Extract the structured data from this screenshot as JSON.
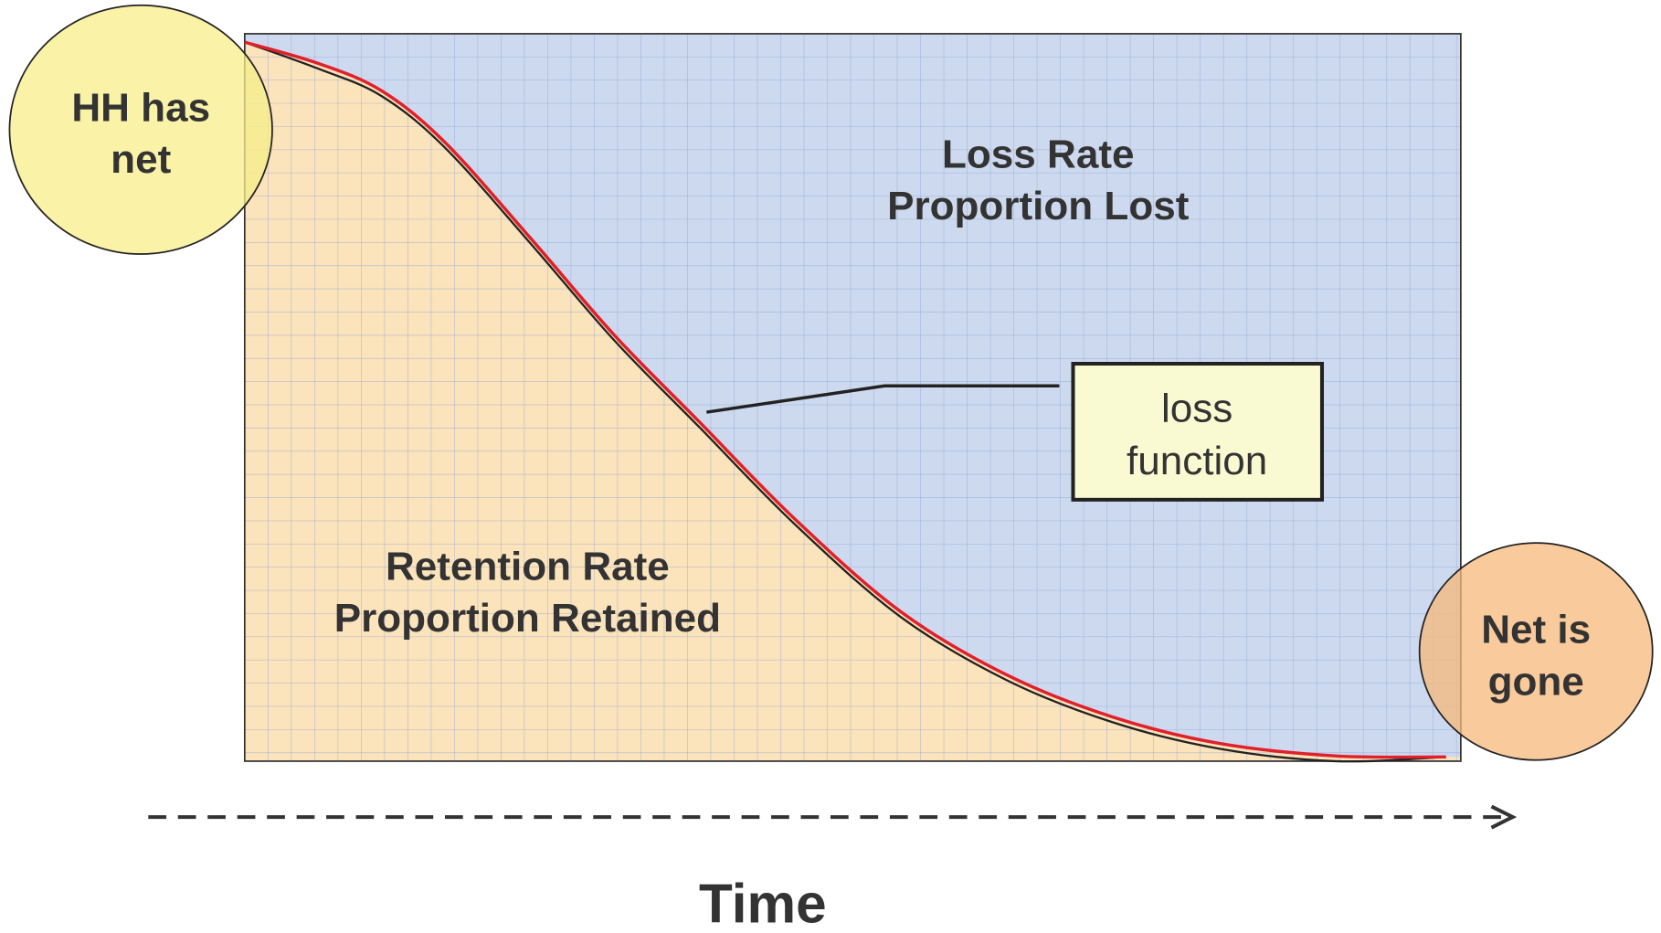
{
  "start_circle": {
    "lines": [
      "HH has",
      "net"
    ]
  },
  "loss_region": {
    "lines": [
      "Loss Rate",
      "Proportion Lost"
    ]
  },
  "callout": {
    "lines": [
      "loss",
      "function"
    ]
  },
  "retention_region": {
    "lines": [
      "Retention Rate",
      "Proportion Retained"
    ]
  },
  "end_circle": {
    "lines": [
      "Net is",
      "gone"
    ]
  },
  "axis_label": "Time"
}
